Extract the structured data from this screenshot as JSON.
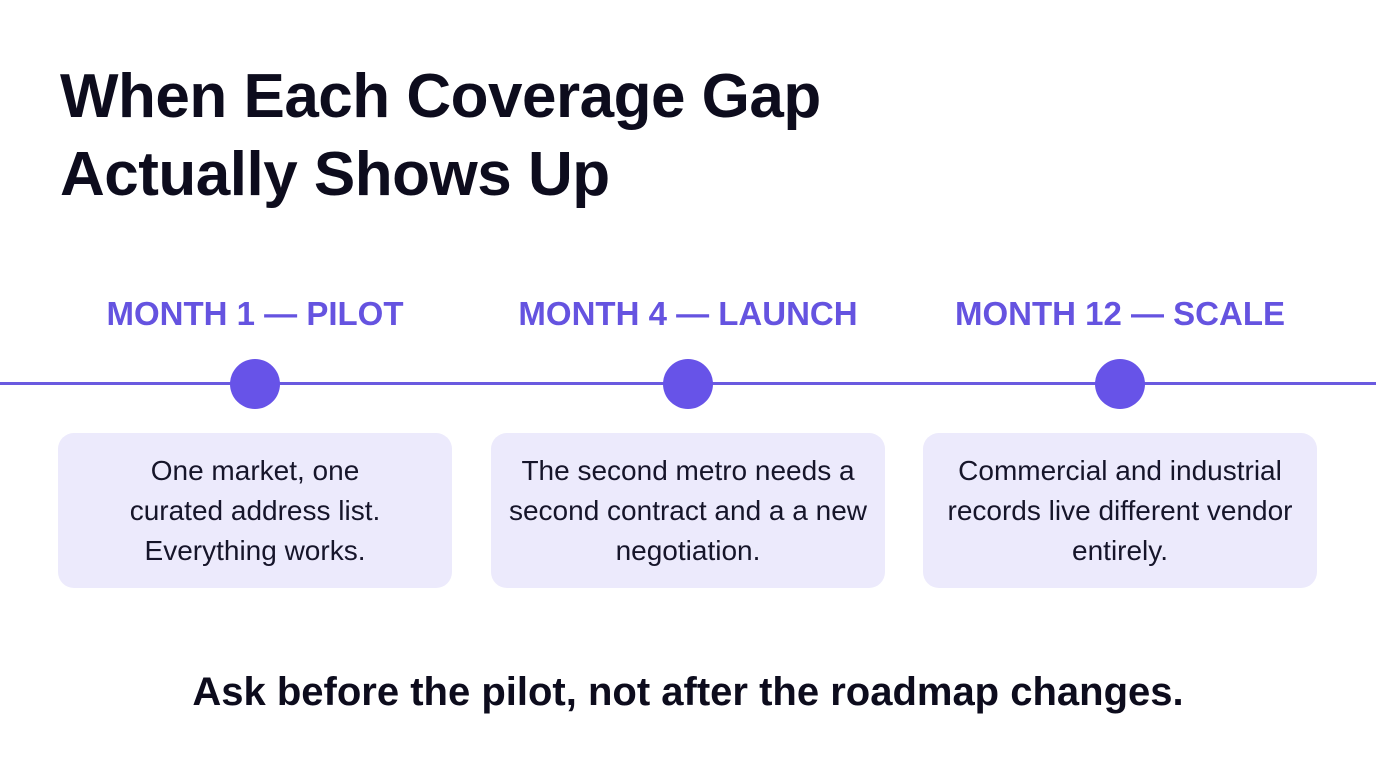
{
  "title": {
    "line1": "When Each Coverage Gap",
    "line2": "Actually Shows Up"
  },
  "colors": {
    "accent": "#6a5ae0",
    "card_background": "#eceafc",
    "text": "#0d0c1d"
  },
  "stages": [
    {
      "label": "MONTH 1 — PILOT",
      "text": "One market, one curated address list. Everything works."
    },
    {
      "label": "MONTH 4 — LAUNCH",
      "text": "The second metro needs a second contract and a a new negotiation."
    },
    {
      "label": "MONTH 12 — SCALE",
      "text": "Commercial and industrial records live different vendor entirely."
    }
  ],
  "takeaway": "Ask before the pilot, not after the roadmap changes."
}
